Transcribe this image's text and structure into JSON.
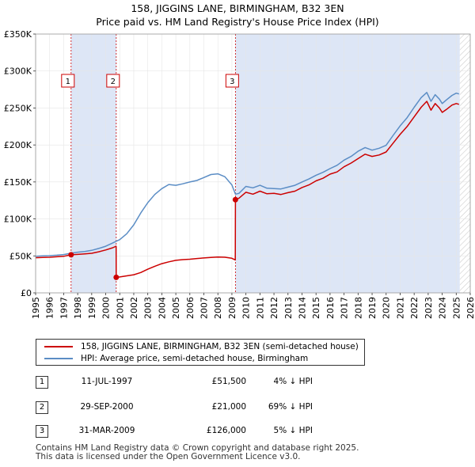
{
  "chart_data": {
    "type": "line",
    "title": "158, JIGGINS LANE, BIRMINGHAM, B32 3EN",
    "subtitle": "Price paid vs. HM Land Registry's House Price Index (HPI)",
    "xlim": [
      1995,
      2026
    ],
    "ylim": [
      0,
      350000
    ],
    "yticks": [
      0,
      50000,
      100000,
      150000,
      200000,
      250000,
      300000,
      350000
    ],
    "ytick_labels": [
      "£0",
      "£50K",
      "£100K",
      "£150K",
      "£200K",
      "£250K",
      "£300K",
      "£350K"
    ],
    "xticks": [
      1995,
      1996,
      1997,
      1998,
      1999,
      2000,
      2001,
      2002,
      2003,
      2004,
      2005,
      2006,
      2007,
      2008,
      2009,
      2010,
      2011,
      2012,
      2013,
      2014,
      2015,
      2016,
      2017,
      2018,
      2019,
      2020,
      2021,
      2022,
      2023,
      2024,
      2025,
      2026
    ],
    "colors": {
      "property": "#cc0000",
      "hpi": "#5b8dc5",
      "shade": "#dde6f6",
      "marker_line": "#cc0000",
      "future": "#cccccc"
    },
    "shaded_ranges": [
      [
        1997.53,
        2000.75
      ],
      [
        2009.25,
        2025.25
      ]
    ],
    "future_start": 2025.25,
    "markers": [
      {
        "label": "1",
        "x": 1997.53,
        "y": 51500
      },
      {
        "label": "2",
        "x": 2000.75,
        "y": 21000
      },
      {
        "label": "3",
        "x": 2009.25,
        "y": 126000
      }
    ],
    "series": [
      {
        "name": "158, JIGGINS LANE, BIRMINGHAM, B32 3EN (semi-detached house)",
        "x": [
          1995.0,
          1995.5,
          1996.0,
          1996.5,
          1997.0,
          1997.53,
          1998.0,
          1998.5,
          1999.0,
          1999.5,
          2000.0,
          2000.5,
          2000.74,
          2000.75,
          2001.0,
          2001.5,
          2002.0,
          2002.5,
          2003.0,
          2003.5,
          2004.0,
          2004.5,
          2005.0,
          2005.5,
          2006.0,
          2006.5,
          2007.0,
          2007.5,
          2008.0,
          2008.5,
          2009.0,
          2009.24,
          2009.25,
          2009.5,
          2010.0,
          2010.5,
          2011.0,
          2011.5,
          2012.0,
          2012.5,
          2013.0,
          2013.5,
          2014.0,
          2014.5,
          2015.0,
          2015.5,
          2016.0,
          2016.5,
          2017.0,
          2017.5,
          2018.0,
          2018.5,
          2019.0,
          2019.5,
          2020.0,
          2020.5,
          2021.0,
          2021.5,
          2022.0,
          2022.5,
          2022.9,
          2023.2,
          2023.5,
          2023.8,
          2024.0,
          2024.3,
          2024.7,
          2025.0,
          2025.2
        ],
        "values": [
          47500,
          48000,
          48200,
          48800,
          49500,
          51500,
          52000,
          52800,
          53500,
          55500,
          58000,
          61000,
          63000,
          21000,
          21500,
          23000,
          24500,
          27500,
          32000,
          36000,
          39500,
          42000,
          44000,
          45000,
          45500,
          46500,
          47200,
          48000,
          48500,
          48200,
          46800,
          44500,
          126000,
          128000,
          136000,
          133500,
          137500,
          134000,
          134500,
          133000,
          135500,
          137500,
          142500,
          146000,
          151500,
          155000,
          160500,
          163500,
          170500,
          175500,
          181500,
          187500,
          184500,
          186500,
          190500,
          202500,
          214500,
          225000,
          238000,
          251000,
          259000,
          247000,
          256000,
          250000,
          244000,
          248000,
          254000,
          256000,
          255000
        ]
      },
      {
        "name": "HPI: Average price, semi-detached house, Birmingham",
        "x": [
          1995.0,
          1995.5,
          1996.0,
          1996.5,
          1997.0,
          1997.5,
          1998.0,
          1998.5,
          1999.0,
          1999.5,
          2000.0,
          2000.5,
          2001.0,
          2001.5,
          2002.0,
          2002.5,
          2003.0,
          2003.5,
          2004.0,
          2004.5,
          2005.0,
          2005.5,
          2006.0,
          2006.5,
          2007.0,
          2007.5,
          2008.0,
          2008.5,
          2009.0,
          2009.25,
          2009.5,
          2010.0,
          2010.5,
          2011.0,
          2011.5,
          2012.0,
          2012.5,
          2013.0,
          2013.5,
          2014.0,
          2014.5,
          2015.0,
          2015.5,
          2016.0,
          2016.5,
          2017.0,
          2017.5,
          2018.0,
          2018.5,
          2019.0,
          2019.5,
          2020.0,
          2020.5,
          2021.0,
          2021.5,
          2022.0,
          2022.5,
          2022.9,
          2023.2,
          2023.5,
          2023.8,
          2024.0,
          2024.3,
          2024.7,
          2025.0,
          2025.2
        ],
        "values": [
          49500,
          50000,
          50300,
          51000,
          51800,
          53500,
          55000,
          56000,
          57500,
          60000,
          63000,
          67500,
          72000,
          80000,
          92000,
          108000,
          122000,
          133000,
          141000,
          146500,
          145500,
          147500,
          150000,
          152000,
          156000,
          160000,
          161000,
          157000,
          146000,
          133500,
          134500,
          144000,
          142000,
          145500,
          141500,
          141000,
          140500,
          143000,
          145500,
          150000,
          154000,
          159000,
          163000,
          168000,
          172500,
          179500,
          184500,
          191500,
          196500,
          193000,
          195500,
          199500,
          213000,
          226000,
          237000,
          251000,
          264000,
          271000,
          259000,
          268000,
          262000,
          256000,
          261000,
          267000,
          270000,
          269000
        ]
      }
    ]
  },
  "legend": {
    "property_label": "158, JIGGINS LANE, BIRMINGHAM, B32 3EN (semi-detached house)",
    "hpi_label": "HPI: Average price, semi-detached house, Birmingham"
  },
  "transactions": [
    {
      "num": "1",
      "date": "11-JUL-1997",
      "price": "£51,500",
      "hpi": "4% ↓ HPI"
    },
    {
      "num": "2",
      "date": "29-SEP-2000",
      "price": "£21,000",
      "hpi": "69% ↓ HPI"
    },
    {
      "num": "3",
      "date": "31-MAR-2009",
      "price": "£126,000",
      "hpi": "5% ↓ HPI"
    }
  ],
  "footer": {
    "line1": "Contains HM Land Registry data © Crown copyright and database right 2025.",
    "line2": "This data is licensed under the Open Government Licence v3.0."
  }
}
